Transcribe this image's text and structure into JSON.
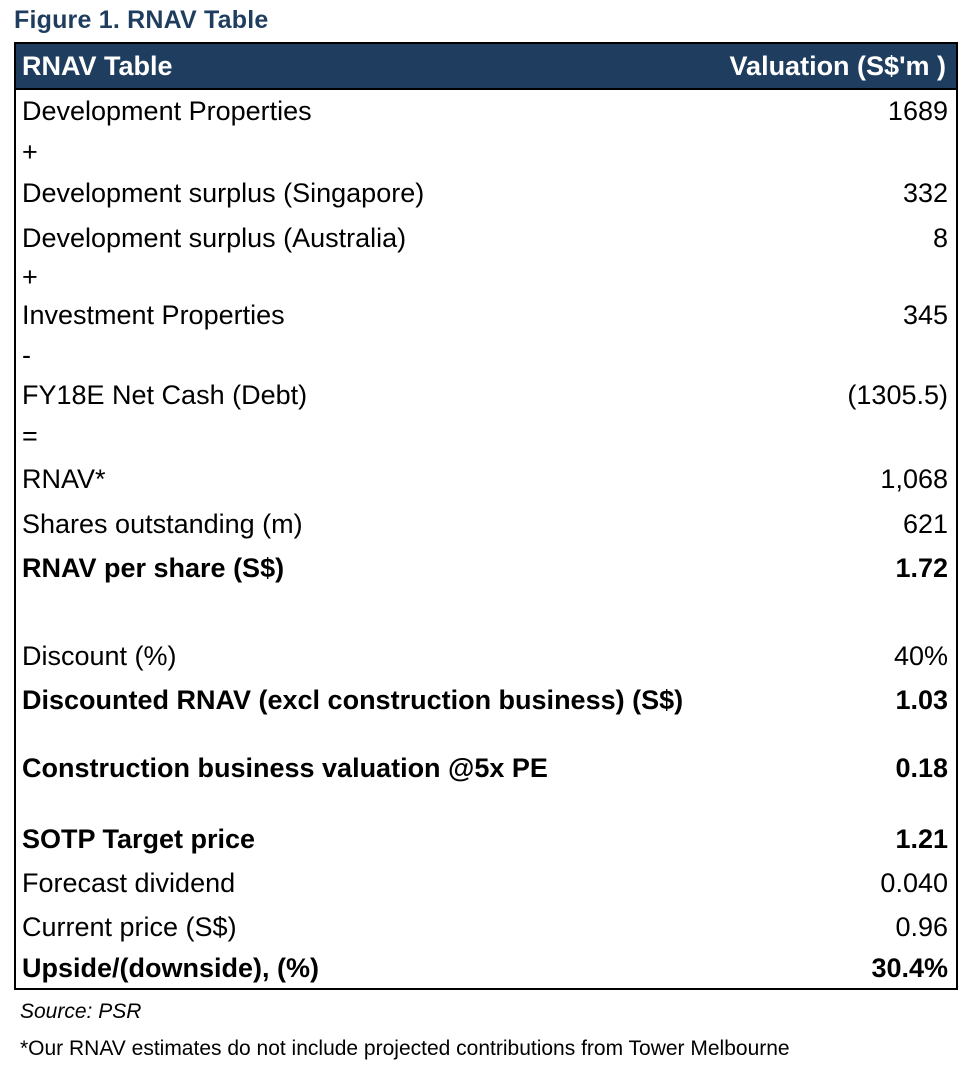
{
  "figure_title": "Figure 1. RNAV Table",
  "table": {
    "header_left": "RNAV Table",
    "header_right": "Valuation (S$'m )",
    "rows": [
      {
        "label": "Development Properties",
        "value": "1689",
        "bold": false
      },
      {
        "label": "+",
        "value": "",
        "bold": false
      },
      {
        "label": "Development surplus (Singapore)",
        "value": "332",
        "bold": false
      },
      {
        "label": "Development surplus (Australia)",
        "value": "8",
        "bold": false
      },
      {
        "label": "+",
        "value": "",
        "bold": false
      },
      {
        "label": "Investment Properties",
        "value": "345",
        "bold": false
      },
      {
        "label": "-",
        "value": "",
        "bold": false
      },
      {
        "label": "FY18E Net Cash (Debt)",
        "value": "(1305.5)",
        "bold": false
      },
      {
        "label": "=",
        "value": "",
        "bold": false
      },
      {
        "label": "RNAV*",
        "value": "1,068",
        "bold": false
      },
      {
        "label": "Shares outstanding (m)",
        "value": "621",
        "bold": false
      },
      {
        "label": "RNAV per share (S$)",
        "value": "1.72",
        "bold": true
      },
      {
        "label": "Discount (%)",
        "value": "40%",
        "bold": false
      },
      {
        "label": "Discounted RNAV (excl construction business) (S$)",
        "value": "1.03",
        "bold": true
      },
      {
        "label": "Construction business valuation @5x PE",
        "value": "0.18",
        "bold": true
      },
      {
        "label": "SOTP Target price",
        "value": "1.21",
        "bold": true
      },
      {
        "label": "Forecast dividend",
        "value": "0.040",
        "bold": false
      },
      {
        "label": "Current price (S$)",
        "value": "0.96",
        "bold": false
      },
      {
        "label": "Upside/(downside), (%)",
        "value": "30.4%",
        "bold": true
      }
    ]
  },
  "source": "Source: PSR",
  "footnote": "*Our RNAV estimates do not include projected contributions from Tower Melbourne"
}
